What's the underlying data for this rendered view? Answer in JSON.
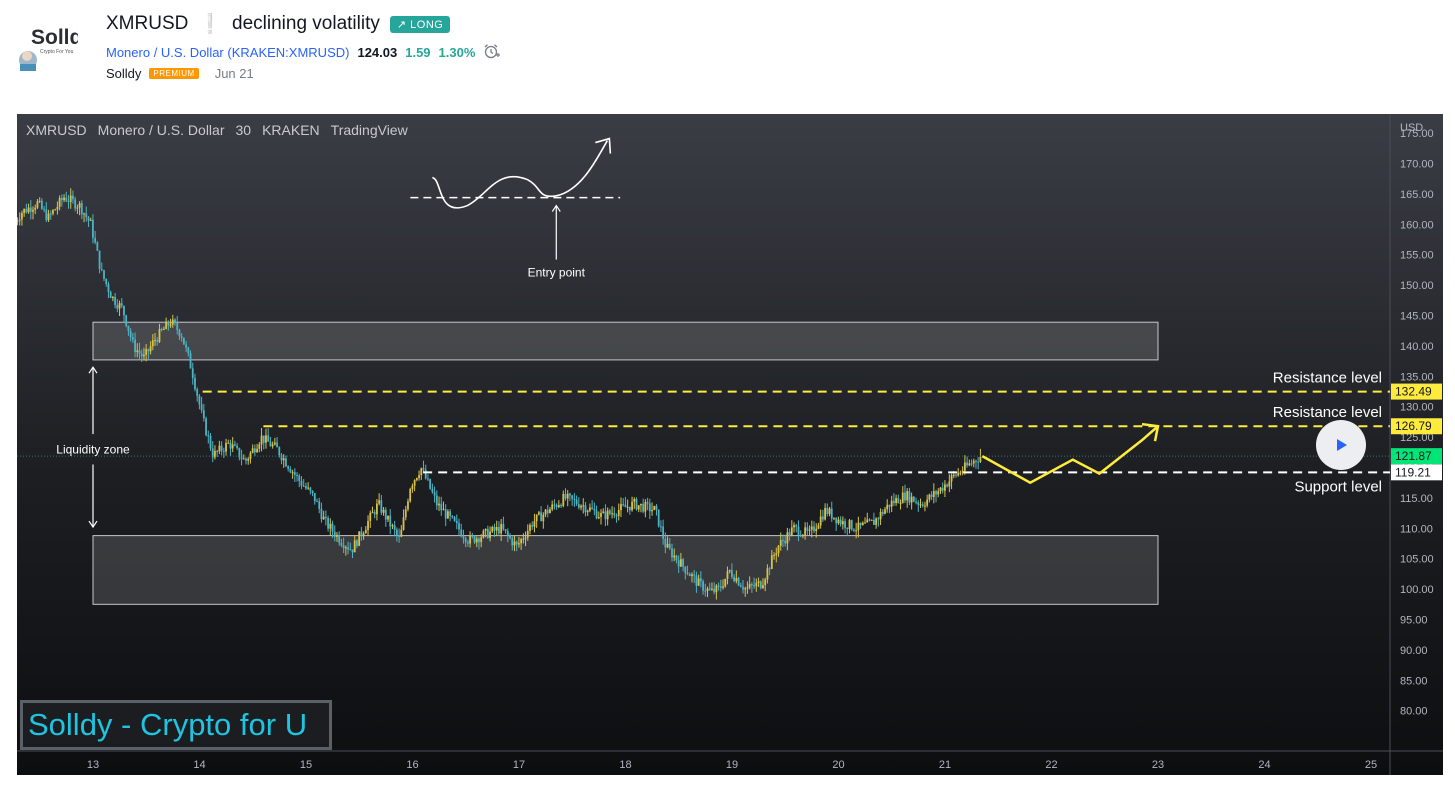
{
  "header": {
    "title": "XMRUSD",
    "subtitle_mark": "❕",
    "idea_title": "declining volatility",
    "badge": "↗ LONG",
    "symbol_desc": "Monero / U.S. Dollar",
    "exchange": "(KRAKEN:XMRUSD)",
    "price": "124.03",
    "change": "1.59",
    "change_pct": "1.30%",
    "author": "Solldy",
    "author_badge": "PREMIUM",
    "date": "Jun 21",
    "logo_text": "Solldy",
    "logo_sub": "Crypto For You"
  },
  "chart_legend": {
    "symbol": "XMRUSD",
    "name": "Monero / U.S. Dollar",
    "interval": "30",
    "exchange": "KRAKEN",
    "source": "TradingView"
  },
  "annotations": {
    "entry_point": "Entry point",
    "liquidity_zone": "Liquidity zone",
    "resistance_1": "Resistance level",
    "resistance_2": "Resistance level",
    "support": "Support level",
    "watermark": "Solldy - Crypto for U"
  },
  "colors": {
    "up": "#26a69a",
    "accent_yellow": "#ffeb3b",
    "price_label": "#00e676",
    "brand_cyan": "#1fc4e0"
  },
  "chart_data": {
    "type": "candlestick",
    "currency": "USD",
    "ylim": [
      76.5,
      178.5
    ],
    "y_ticks": [
      175,
      170,
      165,
      160,
      155,
      150,
      145,
      140,
      135,
      130,
      125,
      120,
      115,
      110,
      105,
      100,
      95,
      90,
      85,
      80
    ],
    "x_ticks": [
      "13",
      "14",
      "15",
      "16",
      "17",
      "18",
      "19",
      "20",
      "21",
      "22",
      "23",
      "24",
      "25"
    ],
    "x_start": 12.27,
    "x_end": 25.21,
    "price_labels": [
      {
        "value": 132.49,
        "text": "132.49",
        "style": "yellow"
      },
      {
        "value": 126.79,
        "text": "126.79",
        "style": "yellow"
      },
      {
        "value": 121.87,
        "text": "121.87",
        "style": "green"
      },
      {
        "value": 119.21,
        "text": "119.21",
        "style": "white"
      }
    ],
    "levels": [
      {
        "value": 132.49,
        "from": 14.03,
        "to": 25.21,
        "color": "yellow"
      },
      {
        "value": 126.79,
        "from": 14.6,
        "to": 25.21,
        "color": "yellow"
      },
      {
        "value": 119.21,
        "from": 16.1,
        "to": 25.21,
        "color": "white"
      }
    ],
    "zones": [
      {
        "from": 13.0,
        "to": 23.0,
        "top": 143.9,
        "bottom": 137.7
      },
      {
        "from": 13.0,
        "to": 23.0,
        "top": 108.8,
        "bottom": 97.5
      }
    ],
    "path": [
      [
        12.27,
        160.0
      ],
      [
        12.35,
        162.0
      ],
      [
        12.5,
        163.5
      ],
      [
        12.6,
        161.0
      ],
      [
        12.75,
        164.5
      ],
      [
        12.9,
        163.0
      ],
      [
        13.0,
        160.0
      ],
      [
        13.1,
        152.0
      ],
      [
        13.2,
        148.0
      ],
      [
        13.3,
        146.0
      ],
      [
        13.4,
        140.0
      ],
      [
        13.5,
        138.0
      ],
      [
        13.6,
        141.0
      ],
      [
        13.75,
        144.0
      ],
      [
        13.85,
        142.0
      ],
      [
        13.95,
        136.0
      ],
      [
        14.05,
        128.0
      ],
      [
        14.15,
        122.0
      ],
      [
        14.3,
        124.0
      ],
      [
        14.45,
        121.0
      ],
      [
        14.6,
        125.0
      ],
      [
        14.75,
        123.0
      ],
      [
        14.95,
        118.0
      ],
      [
        15.1,
        115.0
      ],
      [
        15.2,
        111.0
      ],
      [
        15.35,
        108.0
      ],
      [
        15.45,
        106.5
      ],
      [
        15.6,
        111.0
      ],
      [
        15.7,
        114.0
      ],
      [
        15.8,
        111.0
      ],
      [
        15.9,
        108.0
      ],
      [
        16.0,
        117.0
      ],
      [
        16.1,
        120.0
      ],
      [
        16.25,
        114.0
      ],
      [
        16.4,
        111.0
      ],
      [
        16.55,
        108.0
      ],
      [
        16.7,
        109.0
      ],
      [
        16.85,
        110.0
      ],
      [
        17.0,
        107.0
      ],
      [
        17.15,
        111.0
      ],
      [
        17.3,
        113.0
      ],
      [
        17.45,
        115.0
      ],
      [
        17.6,
        114.0
      ],
      [
        17.8,
        112.0
      ],
      [
        17.95,
        113.0
      ],
      [
        18.1,
        114.0
      ],
      [
        18.3,
        113.0
      ],
      [
        18.4,
        107.0
      ],
      [
        18.55,
        104.0
      ],
      [
        18.7,
        101.0
      ],
      [
        18.82,
        99.5
      ],
      [
        18.9,
        100.0
      ],
      [
        19.0,
        103.0
      ],
      [
        19.15,
        100.0
      ],
      [
        19.3,
        101.0
      ],
      [
        19.45,
        107.0
      ],
      [
        19.6,
        110.0
      ],
      [
        19.75,
        109.0
      ],
      [
        19.9,
        113.0
      ],
      [
        20.05,
        111.0
      ],
      [
        20.2,
        110.0
      ],
      [
        20.35,
        111.0
      ],
      [
        20.5,
        114.0
      ],
      [
        20.65,
        115.5
      ],
      [
        20.8,
        114.0
      ],
      [
        20.95,
        116.0
      ],
      [
        21.1,
        118.5
      ],
      [
        21.25,
        120.5
      ],
      [
        21.35,
        121.87
      ]
    ],
    "projection": [
      [
        21.35,
        121.87
      ],
      [
        21.8,
        117.5
      ],
      [
        22.2,
        121.3
      ],
      [
        22.45,
        119.0
      ],
      [
        22.85,
        124.5
      ],
      [
        23.0,
        126.8
      ]
    ],
    "entry_sketch": {
      "dash_level": 164.4,
      "from": 15.98,
      "to": 17.95,
      "arrow_x": 17.35
    }
  }
}
